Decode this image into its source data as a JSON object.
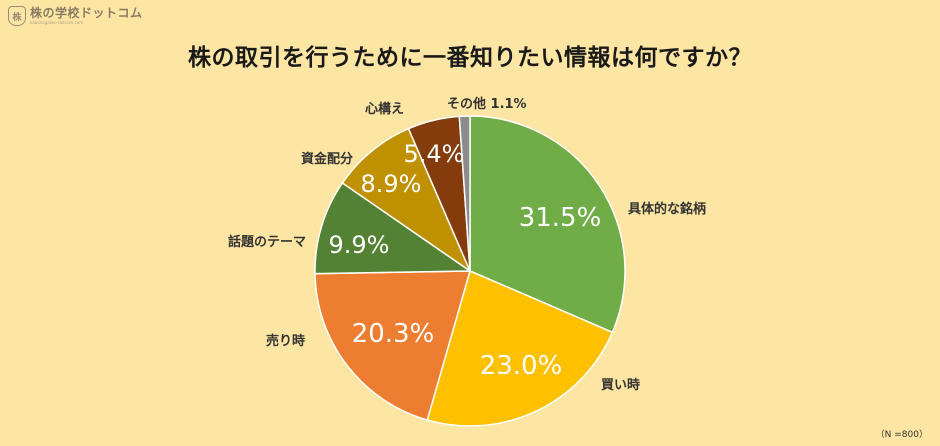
{
  "logo": {
    "name": "株の学校ドットコム",
    "url": "kabunogakko-dotcom.com"
  },
  "title": "株の取引を行うために一番知りたい情報は何ですか？",
  "note": "（N =800）",
  "colors": {
    "background": "#fde6a3",
    "specific_stock": "#70ad47",
    "buy_timing": "#ffc000",
    "sell_timing": "#ed7d31",
    "themes": "#548235",
    "funds": "#bf9000",
    "mindset": "#843c0c",
    "other": "#8c8c8c"
  },
  "chart_data": {
    "type": "pie",
    "title": "株の取引を行うために一番知りたい情報は何ですか？",
    "slices": [
      {
        "label": "具体的な銘柄",
        "value": 31.5,
        "value_label": "31.5%"
      },
      {
        "label": "買い時",
        "value": 23.0,
        "value_label": "23.0%"
      },
      {
        "label": "売り時",
        "value": 20.3,
        "value_label": "20.3%"
      },
      {
        "label": "話題のテーマ",
        "value": 9.9,
        "value_label": "9.9%"
      },
      {
        "label": "資金配分",
        "value": 8.9,
        "value_label": "8.9%"
      },
      {
        "label": "心構え",
        "value": 5.4,
        "value_label": "5.4%"
      },
      {
        "label": "その他",
        "value": 1.1,
        "value_label": "1.1%"
      }
    ],
    "start_angle": "12 o'clock",
    "direction": "clockwise",
    "legend": "none (category labels outside slices)"
  }
}
